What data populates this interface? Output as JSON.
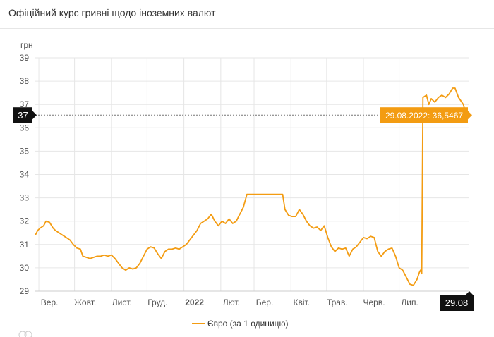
{
  "header": {
    "title": "Офіційний курс гривні щодо іноземних валют"
  },
  "chart_data": {
    "type": "line",
    "ylabel": "грн",
    "ylim": [
      29,
      39
    ],
    "yticks": [
      29,
      30,
      31,
      32,
      33,
      34,
      35,
      36,
      37,
      38,
      39
    ],
    "xlim": [
      "2021-08-29",
      "2022-08-29"
    ],
    "x_ticks": [
      {
        "label": "Вер.",
        "date": "2021-09-01"
      },
      {
        "label": "Жовт.",
        "date": "2021-10-01"
      },
      {
        "label": "Лист.",
        "date": "2021-11-01"
      },
      {
        "label": "Груд.",
        "date": "2021-12-01"
      },
      {
        "label": "2022",
        "date": "2022-01-01",
        "bold": true
      },
      {
        "label": "Лют.",
        "date": "2022-02-01"
      },
      {
        "label": "Бер.",
        "date": "2022-03-01"
      },
      {
        "label": "Квіт.",
        "date": "2022-04-01"
      },
      {
        "label": "Трав.",
        "date": "2022-05-01"
      },
      {
        "label": "Черв.",
        "date": "2022-06-01"
      },
      {
        "label": "Лип.",
        "date": "2022-07-01"
      }
    ],
    "crosshair": {
      "y_label": "37",
      "x_label": "29.08",
      "tooltip": "29.08.2022: 36,5467",
      "x": "2022-08-29",
      "y": 36.5467
    },
    "series": [
      {
        "name": "Євро (за 1 одиницю)",
        "color": "#f39c12",
        "points": [
          [
            "2021-08-29",
            31.4
          ],
          [
            "2021-08-31",
            31.6
          ],
          [
            "2021-09-02",
            31.7
          ],
          [
            "2021-09-05",
            31.8
          ],
          [
            "2021-09-07",
            32.0
          ],
          [
            "2021-09-10",
            31.95
          ],
          [
            "2021-09-13",
            31.7
          ],
          [
            "2021-09-15",
            31.6
          ],
          [
            "2021-09-18",
            31.5
          ],
          [
            "2021-09-21",
            31.4
          ],
          [
            "2021-09-24",
            31.3
          ],
          [
            "2021-09-27",
            31.2
          ],
          [
            "2021-09-30",
            31.0
          ],
          [
            "2021-10-03",
            30.85
          ],
          [
            "2021-10-06",
            30.8
          ],
          [
            "2021-10-08",
            30.5
          ],
          [
            "2021-10-11",
            30.45
          ],
          [
            "2021-10-14",
            30.4
          ],
          [
            "2021-10-17",
            30.45
          ],
          [
            "2021-10-20",
            30.5
          ],
          [
            "2021-10-23",
            30.5
          ],
          [
            "2021-10-26",
            30.55
          ],
          [
            "2021-10-29",
            30.5
          ],
          [
            "2021-11-01",
            30.55
          ],
          [
            "2021-11-04",
            30.4
          ],
          [
            "2021-11-07",
            30.2
          ],
          [
            "2021-11-10",
            30.0
          ],
          [
            "2021-11-13",
            29.9
          ],
          [
            "2021-11-16",
            30.0
          ],
          [
            "2021-11-19",
            29.95
          ],
          [
            "2021-11-22",
            30.0
          ],
          [
            "2021-11-25",
            30.2
          ],
          [
            "2021-11-28",
            30.5
          ],
          [
            "2021-12-01",
            30.8
          ],
          [
            "2021-12-04",
            30.9
          ],
          [
            "2021-12-07",
            30.85
          ],
          [
            "2021-12-10",
            30.6
          ],
          [
            "2021-12-13",
            30.4
          ],
          [
            "2021-12-16",
            30.7
          ],
          [
            "2021-12-19",
            30.8
          ],
          [
            "2021-12-22",
            30.8
          ],
          [
            "2021-12-25",
            30.85
          ],
          [
            "2021-12-28",
            30.8
          ],
          [
            "2021-12-31",
            30.9
          ],
          [
            "2022-01-03",
            31.0
          ],
          [
            "2022-01-06",
            31.2
          ],
          [
            "2022-01-09",
            31.4
          ],
          [
            "2022-01-12",
            31.6
          ],
          [
            "2022-01-15",
            31.9
          ],
          [
            "2022-01-18",
            32.0
          ],
          [
            "2022-01-21",
            32.1
          ],
          [
            "2022-01-24",
            32.3
          ],
          [
            "2022-01-27",
            32.0
          ],
          [
            "2022-01-30",
            31.8
          ],
          [
            "2022-02-02",
            32.0
          ],
          [
            "2022-02-05",
            31.9
          ],
          [
            "2022-02-08",
            32.1
          ],
          [
            "2022-02-11",
            31.9
          ],
          [
            "2022-02-14",
            32.0
          ],
          [
            "2022-02-17",
            32.3
          ],
          [
            "2022-02-20",
            32.6
          ],
          [
            "2022-02-23",
            33.15
          ],
          [
            "2022-02-26",
            33.15
          ],
          [
            "2022-03-05",
            33.15
          ],
          [
            "2022-03-15",
            33.15
          ],
          [
            "2022-03-25",
            33.15
          ],
          [
            "2022-03-27",
            32.5
          ],
          [
            "2022-03-30",
            32.25
          ],
          [
            "2022-04-02",
            32.2
          ],
          [
            "2022-04-05",
            32.2
          ],
          [
            "2022-04-08",
            32.5
          ],
          [
            "2022-04-11",
            32.3
          ],
          [
            "2022-04-14",
            32.0
          ],
          [
            "2022-04-17",
            31.8
          ],
          [
            "2022-04-20",
            31.7
          ],
          [
            "2022-04-23",
            31.75
          ],
          [
            "2022-04-26",
            31.6
          ],
          [
            "2022-04-29",
            31.8
          ],
          [
            "2022-05-02",
            31.3
          ],
          [
            "2022-05-05",
            30.9
          ],
          [
            "2022-05-08",
            30.7
          ],
          [
            "2022-05-11",
            30.85
          ],
          [
            "2022-05-14",
            30.8
          ],
          [
            "2022-05-17",
            30.85
          ],
          [
            "2022-05-20",
            30.5
          ],
          [
            "2022-05-23",
            30.8
          ],
          [
            "2022-05-26",
            30.9
          ],
          [
            "2022-05-29",
            31.1
          ],
          [
            "2022-06-01",
            31.3
          ],
          [
            "2022-06-04",
            31.25
          ],
          [
            "2022-06-07",
            31.35
          ],
          [
            "2022-06-10",
            31.3
          ],
          [
            "2022-06-13",
            30.7
          ],
          [
            "2022-06-16",
            30.5
          ],
          [
            "2022-06-19",
            30.7
          ],
          [
            "2022-06-22",
            30.8
          ],
          [
            "2022-06-25",
            30.85
          ],
          [
            "2022-06-28",
            30.5
          ],
          [
            "2022-07-01",
            30.0
          ],
          [
            "2022-07-04",
            29.9
          ],
          [
            "2022-07-07",
            29.6
          ],
          [
            "2022-07-10",
            29.3
          ],
          [
            "2022-07-13",
            29.25
          ],
          [
            "2022-07-16",
            29.5
          ],
          [
            "2022-07-18",
            29.8
          ],
          [
            "2022-07-19",
            29.9
          ],
          [
            "2022-07-20",
            29.75
          ],
          [
            "2022-07-21",
            37.3
          ],
          [
            "2022-07-24",
            37.4
          ],
          [
            "2022-07-26",
            37.0
          ],
          [
            "2022-07-28",
            37.25
          ],
          [
            "2022-07-31",
            37.1
          ],
          [
            "2022-08-03",
            37.3
          ],
          [
            "2022-08-06",
            37.4
          ],
          [
            "2022-08-09",
            37.3
          ],
          [
            "2022-08-12",
            37.45
          ],
          [
            "2022-08-15",
            37.7
          ],
          [
            "2022-08-17",
            37.7
          ],
          [
            "2022-08-20",
            37.3
          ],
          [
            "2022-08-22",
            37.15
          ],
          [
            "2022-08-24",
            37.0
          ],
          [
            "2022-08-26",
            36.6
          ],
          [
            "2022-08-29",
            36.5467
          ]
        ]
      }
    ]
  }
}
